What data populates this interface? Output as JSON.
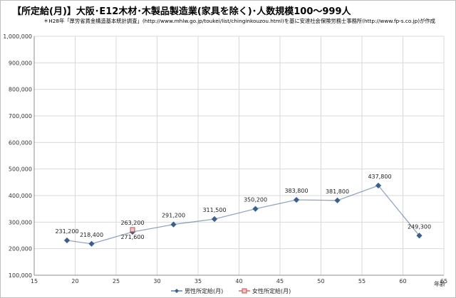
{
  "chart_data": {
    "type": "line",
    "title": "【所定給(月)】大阪･E12木材･木製品製造業(家具を除く)･人数規模100～999人",
    "subtitle": "＊H28年「厚労省賃金構造基本統計調査」(http://www.mhlw.go.jp/toukei/list/chinginkouzou.html)を基に安達社会保険労務士事務所(http://www.fp-s.co.jp)が作成",
    "xlabel": "年齢",
    "ylabel": "",
    "xlim": [
      15,
      65
    ],
    "ylim": [
      100000,
      1000000
    ],
    "x_ticks": [
      15,
      20,
      25,
      30,
      35,
      40,
      45,
      50,
      55,
      60,
      65
    ],
    "y_ticks": [
      100000,
      200000,
      300000,
      400000,
      500000,
      600000,
      700000,
      800000,
      900000,
      1000000
    ],
    "x_tick_labels": [
      "15",
      "20",
      "25",
      "30",
      "35",
      "40",
      "45",
      "50",
      "55",
      "60",
      "65"
    ],
    "y_tick_labels": [
      "100,000",
      "200,000",
      "300,000",
      "400,000",
      "500,000",
      "600,000",
      "700,000",
      "800,000",
      "900,000",
      "1,000,000"
    ],
    "grid": true,
    "legend_position": "bottom",
    "series": [
      {
        "name": "男性所定給(月)",
        "color": "#3a5f8f",
        "marker": "diamond",
        "points": [
          {
            "x": 19,
            "y": 231200,
            "label": "231,200"
          },
          {
            "x": 22,
            "y": 218400,
            "label": "218,400"
          },
          {
            "x": 27,
            "y": 263200,
            "label": "263,200"
          },
          {
            "x": 32,
            "y": 291200,
            "label": "291,200"
          },
          {
            "x": 37,
            "y": 311500,
            "label": "311,500"
          },
          {
            "x": 42,
            "y": 350200,
            "label": "350,200"
          },
          {
            "x": 47,
            "y": 383800,
            "label": "383,800"
          },
          {
            "x": 52,
            "y": 381800,
            "label": "381,800"
          },
          {
            "x": 57,
            "y": 437800,
            "label": "437,800"
          },
          {
            "x": 62,
            "y": 249300,
            "label": "249,300"
          }
        ]
      },
      {
        "name": "女性所定給(月)",
        "color": "#c0504d",
        "marker": "square",
        "points": [
          {
            "x": 27,
            "y": 271600,
            "label": "271,600"
          }
        ]
      }
    ]
  }
}
